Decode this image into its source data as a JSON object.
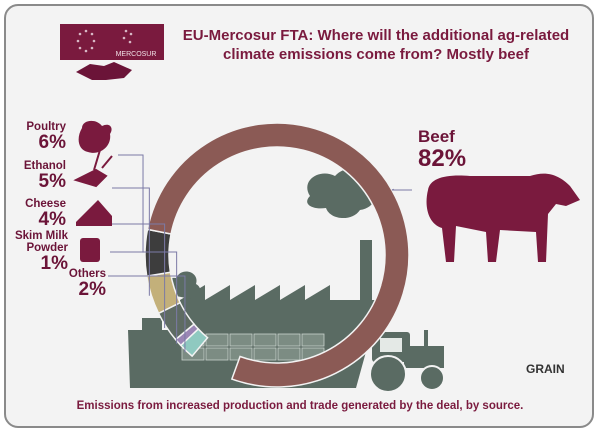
{
  "title": "EU-Mercosur FTA: Where will the additional ag-related climate emissions come from? Mostly beef",
  "footer": "Emissions from increased production and trade generated by the deal, by source.",
  "logo_text": "MERCOSUR",
  "brand": "GRAIN",
  "chart_data": {
    "type": "pie",
    "title": "EU-Mercosur FTA: Where will the additional ag-related climate emissions come from? Mostly beef",
    "caption": "Emissions from increased production and trade generated by the deal, by source.",
    "slices": [
      {
        "label": "Beef",
        "value": 82,
        "value_label": "82%",
        "color": "#8b5a55"
      },
      {
        "label": "Poultry",
        "value": 6,
        "value_label": "6%",
        "color": "#3d3d3d"
      },
      {
        "label": "Ethanol",
        "value": 5,
        "value_label": "5%",
        "color": "#c3b07a"
      },
      {
        "label": "Cheese",
        "value": 4,
        "value_label": "4%",
        "color": "#5e6b63"
      },
      {
        "label": "Skim Milk Powder",
        "value": 1,
        "value_label": "1%",
        "color": "#9b86b5"
      },
      {
        "label": "Others",
        "value": 2,
        "value_label": "2%",
        "color": "#8fc9c0"
      }
    ]
  },
  "colors": {
    "accent": "#7a1a3e",
    "beef_icon": "#7a1a3e",
    "machinery": "#5a6b63"
  },
  "icons": [
    "handshake-icon",
    "eu-flag-icon",
    "mercosur-flag-icon",
    "chicken-icon",
    "sugarcane-icon",
    "cheese-icon",
    "milk-can-icon",
    "cow-icon",
    "factory-icon",
    "ship-icon",
    "tractor-icon"
  ]
}
